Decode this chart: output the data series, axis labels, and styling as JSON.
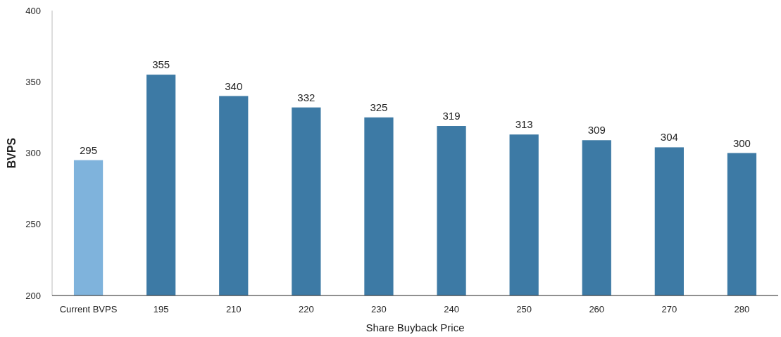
{
  "chart_data": {
    "type": "bar",
    "xlabel": "Share Buyback Price",
    "ylabel": "BVPS",
    "categories": [
      "Current BVPS",
      "195",
      "210",
      "220",
      "230",
      "240",
      "250",
      "260",
      "270",
      "280"
    ],
    "values": [
      295,
      355,
      340,
      332,
      325,
      319,
      313,
      309,
      304,
      300
    ],
    "colors": [
      "#7fb3dc",
      "#3d7aa5",
      "#3d7aa5",
      "#3d7aa5",
      "#3d7aa5",
      "#3d7aa5",
      "#3d7aa5",
      "#3d7aa5",
      "#3d7aa5",
      "#3d7aa5"
    ],
    "ylim": [
      200,
      400
    ],
    "yticks": [
      200,
      250,
      300,
      350,
      400
    ],
    "data_labels": true,
    "grid": false
  }
}
